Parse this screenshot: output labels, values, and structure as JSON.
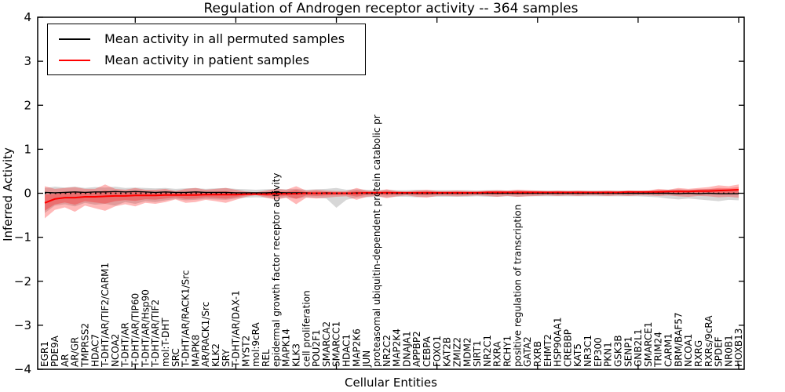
{
  "chart_data": {
    "type": "line",
    "title": "Regulation of Androgen receptor activity -- 364 samples",
    "xlabel": "Cellular Entities",
    "ylabel": "Inferred Activity",
    "ylim": [
      -4,
      4
    ],
    "ytick_labels": [
      "4",
      "3",
      "2",
      "1",
      "0",
      "−1",
      "−2",
      "−3",
      "−4"
    ],
    "ytick_values": [
      4,
      3,
      2,
      1,
      0,
      -1,
      -2,
      -3,
      -4
    ],
    "xtick_indices": [
      9,
      19,
      29,
      39,
      49,
      59,
      69
    ],
    "grid": false,
    "legend_position": "upper left",
    "zero_line": {
      "style": "dotted",
      "color": "#000000",
      "y": 0
    },
    "categories": [
      "EGR1",
      "PDE9A",
      "AR",
      "AR/GR",
      "TMPRSS2",
      "HDAC7",
      "T-DHT/AR/TIF2/CARM1",
      "NCOA2",
      "T-DHT/AR",
      "T-DHT/AR/TIP60",
      "T-DHT/AR/Hsp90",
      "T-DHT/AR/TIF2",
      "mol:T-DHT",
      "SRC",
      "T-DHT/AR/RACK1/Src",
      "MAPK8",
      "AR/RACK1/Src",
      "KLK2",
      "SRY",
      "T-DHT/AR/DAX-1",
      "MYST2",
      "mol:9cRA",
      "REL",
      "epidermal growth factor receptor activity",
      "MAPK14",
      "KLK3",
      "cell proliferation",
      "POU2F1",
      "SMARCA2",
      "SMARCC1",
      "HDAC1",
      "MAP2K6",
      "JUN",
      "proteasomal ubiquitin-dependent protein catabolic pr",
      "NR2C2",
      "MAP2K4",
      "DNAJA1",
      "APPBP2",
      "CEBPA",
      "FOXO1",
      "KAT2B",
      "ZMIZ2",
      "MDM2",
      "SIRT1",
      "NR2C1",
      "RXRA",
      "RCHY1",
      "positive regulation of transcription",
      "GATA2",
      "RXRB",
      "EHMT2",
      "HSP90AA1",
      "CREBBP",
      "KAT5",
      "NR3C1",
      "EP300",
      "PKN1",
      "GSK3B",
      "SENP1",
      "GNB2L1",
      "SMARCE1",
      "TRIM24",
      "CARM1",
      "BRM/BAF57",
      "NCOA1",
      "RXRG",
      "RXRs/9cRA",
      "SPDEF",
      "NR0B1",
      "HOXB13"
    ],
    "series": [
      {
        "name": "Mean activity in all permuted samples",
        "color": "#000000",
        "style": "solid",
        "values": [
          0.02,
          0.01,
          0.02,
          0.03,
          0.02,
          0.03,
          0.03,
          0.04,
          0.03,
          0.04,
          0.03,
          0.02,
          0.03,
          0.02,
          0.02,
          0.03,
          0.02,
          0.02,
          0.02,
          0.01,
          0.01,
          0.01,
          0.01,
          0.02,
          0.01,
          0.01,
          0.01,
          0.0,
          0.01,
          0.0,
          0.0,
          0.01,
          0.0,
          0.0,
          0.01,
          0.0,
          0.0,
          0.0,
          0.0,
          0.0,
          0.0,
          0.0,
          0.0,
          0.0,
          0.0,
          0.0,
          0.0,
          0.0,
          0.0,
          0.0,
          0.0,
          0.0,
          0.0,
          0.0,
          0.0,
          0.0,
          0.0,
          0.0,
          0.0,
          0.0,
          0.0,
          0.0,
          0.0,
          -0.01,
          0.0,
          -0.01,
          0.0,
          -0.01,
          -0.01,
          -0.01
        ]
      },
      {
        "name": "Mean activity in patient samples",
        "color": "#ff0000",
        "style": "solid",
        "values": [
          -0.22,
          -0.13,
          -0.1,
          -0.1,
          -0.08,
          -0.08,
          -0.07,
          -0.06,
          -0.06,
          -0.05,
          -0.05,
          -0.05,
          -0.04,
          -0.04,
          -0.04,
          -0.04,
          -0.03,
          -0.03,
          -0.03,
          -0.03,
          -0.02,
          -0.02,
          -0.02,
          -0.01,
          -0.01,
          -0.01,
          0.0,
          0.0,
          0.0,
          0.0,
          0.0,
          0.0,
          0.01,
          0.01,
          0.01,
          0.01,
          0.01,
          0.01,
          0.01,
          0.01,
          0.01,
          0.01,
          0.01,
          0.01,
          0.02,
          0.02,
          0.02,
          0.02,
          0.02,
          0.02,
          0.02,
          0.02,
          0.02,
          0.02,
          0.02,
          0.02,
          0.02,
          0.02,
          0.03,
          0.03,
          0.03,
          0.03,
          0.04,
          0.04,
          0.04,
          0.05,
          0.05,
          0.06,
          0.07,
          0.08
        ]
      }
    ],
    "bands": [
      {
        "name": "permuted samples spread",
        "color": "#969696",
        "opacity": 0.38,
        "upper": [
          0.12,
          0.15,
          0.13,
          0.15,
          0.12,
          0.14,
          0.13,
          0.15,
          0.12,
          0.13,
          0.12,
          0.11,
          0.12,
          0.1,
          0.11,
          0.12,
          0.1,
          0.11,
          0.12,
          0.1,
          0.09,
          0.08,
          0.09,
          0.1,
          0.09,
          0.1,
          0.08,
          0.09,
          0.1,
          0.12,
          0.08,
          0.09,
          0.08,
          0.07,
          0.08,
          0.07,
          0.07,
          0.08,
          0.07,
          0.07,
          0.07,
          0.07,
          0.07,
          0.06,
          0.07,
          0.07,
          0.06,
          0.07,
          0.06,
          0.06,
          0.06,
          0.06,
          0.06,
          0.06,
          0.06,
          0.06,
          0.06,
          0.06,
          0.06,
          0.06,
          0.06,
          0.07,
          0.08,
          0.09,
          0.08,
          0.09,
          0.1,
          0.1,
          0.09,
          0.1
        ],
        "lower": [
          -0.45,
          -0.28,
          -0.25,
          -0.3,
          -0.22,
          -0.26,
          -0.24,
          -0.28,
          -0.2,
          -0.24,
          -0.18,
          -0.2,
          -0.16,
          -0.13,
          -0.16,
          -0.15,
          -0.13,
          -0.14,
          -0.15,
          -0.12,
          -0.1,
          -0.09,
          -0.1,
          -0.11,
          -0.1,
          -0.12,
          -0.09,
          -0.1,
          -0.12,
          -0.33,
          -0.15,
          -0.1,
          -0.09,
          -0.08,
          -0.09,
          -0.08,
          -0.08,
          -0.09,
          -0.08,
          -0.08,
          -0.08,
          -0.08,
          -0.08,
          -0.07,
          -0.08,
          -0.08,
          -0.07,
          -0.08,
          -0.07,
          -0.07,
          -0.07,
          -0.07,
          -0.07,
          -0.07,
          -0.07,
          -0.07,
          -0.07,
          -0.07,
          -0.07,
          -0.07,
          -0.08,
          -0.09,
          -0.12,
          -0.14,
          -0.12,
          -0.14,
          -0.16,
          -0.18,
          -0.15,
          -0.16
        ]
      },
      {
        "name": "patient samples spread",
        "color": "#ff0000",
        "opacity": 0.28,
        "upper": [
          0.16,
          0.1,
          0.12,
          0.14,
          0.1,
          0.1,
          0.2,
          0.1,
          0.08,
          0.12,
          0.08,
          0.08,
          0.1,
          0.05,
          0.1,
          0.12,
          0.08,
          0.1,
          0.12,
          0.08,
          0.04,
          0.02,
          0.06,
          0.1,
          0.08,
          0.16,
          0.06,
          0.08,
          0.06,
          0.05,
          0.05,
          0.12,
          0.06,
          0.05,
          0.09,
          0.05,
          0.04,
          0.06,
          0.08,
          0.05,
          0.05,
          0.06,
          0.05,
          0.05,
          0.06,
          0.07,
          0.06,
          0.08,
          0.07,
          0.06,
          0.05,
          0.06,
          0.05,
          0.06,
          0.05,
          0.05,
          0.06,
          0.05,
          0.06,
          0.05,
          0.06,
          0.1,
          0.08,
          0.12,
          0.1,
          0.12,
          0.14,
          0.18,
          0.16,
          0.2
        ],
        "lower": [
          -0.57,
          -0.38,
          -0.32,
          -0.42,
          -0.28,
          -0.34,
          -0.4,
          -0.3,
          -0.25,
          -0.3,
          -0.22,
          -0.24,
          -0.2,
          -0.14,
          -0.22,
          -0.2,
          -0.15,
          -0.18,
          -0.22,
          -0.15,
          -0.08,
          -0.04,
          -0.1,
          -0.15,
          -0.1,
          -0.25,
          -0.1,
          -0.12,
          -0.1,
          -0.08,
          -0.07,
          -0.15,
          -0.08,
          -0.06,
          -0.11,
          -0.07,
          -0.05,
          -0.08,
          -0.1,
          -0.06,
          -0.06,
          -0.07,
          -0.06,
          -0.05,
          -0.06,
          -0.08,
          -0.06,
          -0.08,
          -0.07,
          -0.06,
          -0.05,
          -0.06,
          -0.05,
          -0.06,
          -0.05,
          -0.05,
          -0.06,
          -0.05,
          -0.06,
          -0.05,
          -0.05,
          -0.06,
          -0.05,
          -0.07,
          -0.08,
          -0.06,
          -0.07,
          -0.09,
          -0.08,
          -0.1
        ]
      }
    ]
  }
}
